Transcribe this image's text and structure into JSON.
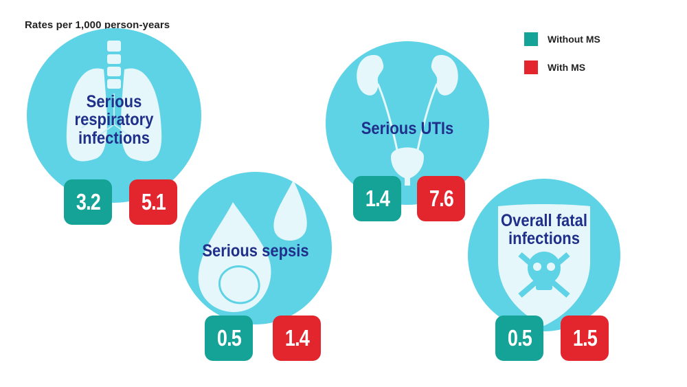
{
  "subtitle": "Rates per 1,000 person-years",
  "colors": {
    "without_ms": "#14a396",
    "with_ms": "#e3262e",
    "circle": "#5fd3e6",
    "label": "#1f2f8a"
  },
  "legend": [
    {
      "label": "Without MS",
      "color": "#14a396"
    },
    {
      "label": "With MS",
      "color": "#e3262e"
    }
  ],
  "chart_data": {
    "type": "bar",
    "title": "",
    "subtitle": "Rates per 1,000 person-years",
    "categories": [
      "Serious respiratory infections",
      "Serious UTIs",
      "Serious sepsis",
      "Overall fatal infections"
    ],
    "series": [
      {
        "name": "Without MS",
        "values": [
          3.2,
          1.4,
          0.5,
          0.5
        ]
      },
      {
        "name": "With MS",
        "values": [
          5.1,
          7.6,
          1.4,
          1.5
        ]
      }
    ],
    "legend_position": "top-right"
  },
  "panels": [
    {
      "label_lines": [
        "Serious",
        "respiratory",
        "infections"
      ],
      "icon": "lungs-icon",
      "without": "3.2",
      "with": "5.1"
    },
    {
      "label_lines": [
        "Serious UTIs"
      ],
      "icon": "kidneys-bladder-icon",
      "without": "1.4",
      "with": "7.6"
    },
    {
      "label_lines": [
        "Serious sepsis"
      ],
      "icon": "blood-drops-icon",
      "without": "0.5",
      "with": "1.4"
    },
    {
      "label_lines": [
        "Overall fatal",
        "infections"
      ],
      "icon": "skull-shield-icon",
      "without": "0.5",
      "with": "1.5"
    }
  ]
}
